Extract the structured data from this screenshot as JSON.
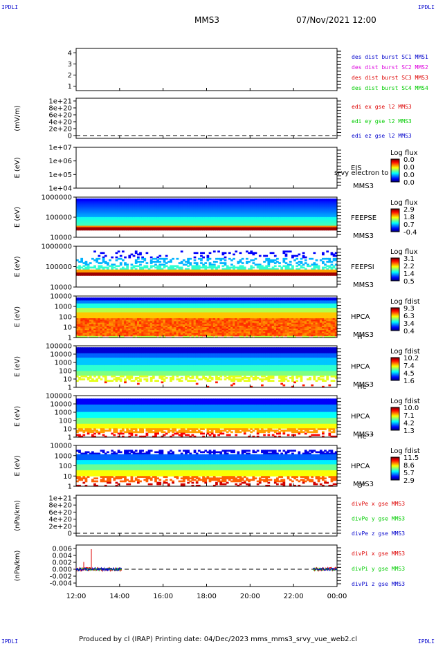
{
  "corners": {
    "tl": "IPDLI",
    "tr": "IPDLI",
    "bl": "IPDLI",
    "br": "IPDLI"
  },
  "header": {
    "spacecraft": "MMS3",
    "datetime": "07/Nov/2021 12:00"
  },
  "footer": {
    "text": "Produced by cl (IRAP)   Printing date: 04/Dec/2023   mms_mms3_srvy_vue_web2.cl"
  },
  "colors": {
    "red": "#dd0000",
    "green": "#00cc00",
    "blue": "#0000cc",
    "magenta": "#dd00dd"
  },
  "chart_data": {
    "type": "multi-panel",
    "x_axis": {
      "ticks": [
        "12:00",
        "14:00",
        "16:00",
        "18:00",
        "20:00",
        "22:00",
        "00:00"
      ],
      "range_hours": [
        0,
        12
      ]
    },
    "panels": [
      {
        "id": "dist-burst",
        "type": "line",
        "ylabel": "",
        "yticks": [
          "1",
          "2",
          "3",
          "4"
        ],
        "ylim": [
          0.6,
          4.4
        ],
        "dashed_zero": false,
        "legend": [
          {
            "text": "des dist burst SC1 MMS1",
            "color": "#0000cc"
          },
          {
            "text": "des dist burst SC2 MMS2",
            "color": "#dd00dd"
          },
          {
            "text": "des dist burst SC3 MMS3",
            "color": "#dd0000"
          },
          {
            "text": "des dist burst SC4 MMS4",
            "color": "#00cc00"
          }
        ]
      },
      {
        "id": "edi",
        "type": "line",
        "ylabel": "(mV/m)",
        "yticks": [
          "1e+21",
          "8e+20",
          "6e+20",
          "4e+20",
          "2e+20",
          "0"
        ],
        "ylim": [
          -0.05,
          1.05
        ],
        "dashed_zero": true,
        "legend": [
          {
            "text": "edi ex gse l2 MMS3",
            "color": "#dd0000"
          },
          {
            "text": "edi ey gse l2 MMS3",
            "color": "#00cc00"
          },
          {
            "text": "edi ez gse l2 MMS3",
            "color": "#0000cc"
          }
        ]
      },
      {
        "id": "eis",
        "type": "heatmap",
        "ylabel": "E (eV)",
        "yticks": [
          "1e+07",
          "1e+06",
          "1e+05",
          "1e+04"
        ],
        "instrument": "EIS",
        "sc": "MMS3",
        "species": "",
        "overlay_text": "srvy electron to",
        "colorbar": {
          "title": "Log flux",
          "ticks": [
            "0.0",
            "0.0",
            "0.0",
            "0.0"
          ]
        },
        "spectrogram": "empty"
      },
      {
        "id": "feeps-e",
        "type": "heatmap",
        "ylabel": "E (eV)",
        "yticks": [
          "1000000",
          "100000",
          "10000"
        ],
        "instrument": "FEEPSE",
        "sc": "MMS3",
        "species": "",
        "colorbar": {
          "title": "Log flux",
          "ticks": [
            "2.9",
            "1.8",
            "0.7",
            "-0.4"
          ]
        },
        "spectrogram": "feeps-electron"
      },
      {
        "id": "feeps-i",
        "type": "heatmap",
        "ylabel": "E (eV)",
        "yticks": [
          "1000000",
          "100000",
          "10000"
        ],
        "instrument": "FEEPSI",
        "sc": "MMS3",
        "species": "",
        "colorbar": {
          "title": "Log flux",
          "ticks": [
            "3.1",
            "2.2",
            "1.4",
            "0.5"
          ]
        },
        "spectrogram": "feeps-ion"
      },
      {
        "id": "hpca-h",
        "type": "heatmap",
        "ylabel": "E (eV)",
        "yticks": [
          "10000",
          "1000",
          "100",
          "10",
          "1"
        ],
        "instrument": "HPCA",
        "sc": "MMS3",
        "species": "H⁺",
        "colorbar": {
          "title": "Log fdist",
          "ticks": [
            "9.3",
            "6.3",
            "3.4",
            "0.4"
          ]
        },
        "spectrogram": "hpca-h"
      },
      {
        "id": "hpca-he",
        "type": "heatmap",
        "ylabel": "E (eV)",
        "yticks": [
          "100000",
          "10000",
          "1000",
          "100",
          "10",
          "1"
        ],
        "instrument": "HPCA",
        "sc": "MMS3",
        "species": "He⁺",
        "colorbar": {
          "title": "Log fdist",
          "ticks": [
            "10.2",
            "7.4",
            "4.5",
            "1.6"
          ]
        },
        "spectrogram": "hpca-he"
      },
      {
        "id": "hpca-hepp",
        "type": "heatmap",
        "ylabel": "E (eV)",
        "yticks": [
          "100000",
          "10000",
          "1000",
          "100",
          "10",
          "1"
        ],
        "instrument": "HPCA",
        "sc": "MMS3",
        "species": "He⁺⁺",
        "colorbar": {
          "title": "Log fdist",
          "ticks": [
            "10.0",
            "7.1",
            "4.2",
            "1.3"
          ]
        },
        "spectrogram": "hpca-hepp"
      },
      {
        "id": "hpca-o",
        "type": "heatmap",
        "ylabel": "E (eV)",
        "yticks": [
          "10000",
          "1000",
          "100",
          "10",
          "1"
        ],
        "instrument": "HPCA",
        "sc": "MMS3",
        "species": "O⁺",
        "colorbar": {
          "title": "Log fdist",
          "ticks": [
            "11.5",
            "8.6",
            "5.7",
            "2.9"
          ]
        },
        "spectrogram": "hpca-o"
      },
      {
        "id": "divpe",
        "type": "line",
        "ylabel": "(nPa/km)",
        "yticks": [
          "1e+21",
          "8e+20",
          "6e+20",
          "4e+20",
          "2e+20",
          "0"
        ],
        "ylim": [
          -0.05,
          1.05
        ],
        "dashed_zero": true,
        "legend": [
          {
            "text": "divPe x gse MMS3",
            "color": "#dd0000"
          },
          {
            "text": "divPe y gse MMS3",
            "color": "#00cc00"
          },
          {
            "text": "divPe z gse MMS3",
            "color": "#0000cc"
          }
        ]
      },
      {
        "id": "divpi",
        "type": "line",
        "ylabel": "(nPa/km)",
        "yticks": [
          "0.006",
          "0.004",
          "0.002",
          "0.000",
          "-0.002",
          "-0.004"
        ],
        "ylim": [
          -0.005,
          0.007
        ],
        "dashed_zero": true,
        "legend": [
          {
            "text": "divPi x gse MMS3",
            "color": "#dd0000"
          },
          {
            "text": "divPi y gse MMS3",
            "color": "#00cc00"
          },
          {
            "text": "divPi z gse MMS3",
            "color": "#0000cc"
          }
        ],
        "series": [
          {
            "name": "divPi x gse MMS3",
            "color": "#dd0000",
            "segments": [
              [
                0,
                2.1
              ],
              [
                10.9,
                12
              ]
            ],
            "base": 0.0,
            "noise": 0.0006,
            "spikes": [
              [
                0.7,
                0.0058
              ],
              [
                0.35,
                0.0021
              ]
            ]
          },
          {
            "name": "divPi y gse MMS3",
            "color": "#00cc00",
            "segments": [
              [
                0,
                2.1
              ],
              [
                10.9,
                12
              ]
            ],
            "base": 0.0,
            "noise": 0.0004,
            "spikes": []
          },
          {
            "name": "divPi z gse MMS3",
            "color": "#0000cc",
            "segments": [
              [
                0,
                2.1
              ],
              [
                10.9,
                12
              ]
            ],
            "base": 0.0,
            "noise": 0.0005,
            "spikes": []
          }
        ]
      }
    ]
  }
}
